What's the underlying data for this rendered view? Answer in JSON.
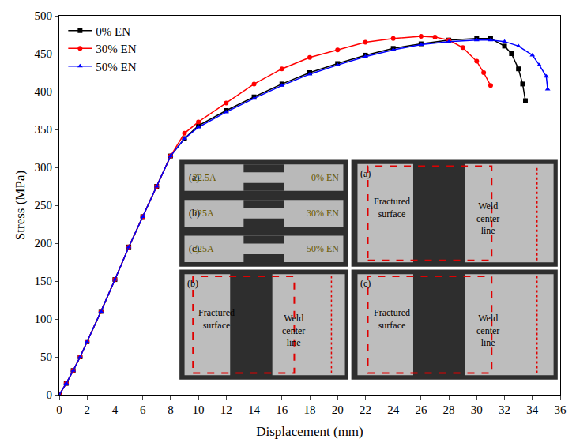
{
  "chart_data": {
    "type": "line",
    "x_label": "Displacement (mm)",
    "y_label": "Stress (MPa)",
    "xlim": [
      0,
      36
    ],
    "ylim": [
      0,
      500
    ],
    "xticks": [
      0,
      2,
      4,
      6,
      8,
      10,
      12,
      14,
      16,
      18,
      20,
      22,
      24,
      26,
      28,
      30,
      32,
      34,
      36
    ],
    "yticks": [
      0,
      50,
      100,
      150,
      200,
      250,
      300,
      350,
      400,
      450,
      500
    ],
    "grid": false,
    "legend": "upper left",
    "series": [
      {
        "name": "0% EN",
        "color": "#000000",
        "marker": "square",
        "line_style": "solid",
        "x": [
          0,
          0.5,
          1,
          1.5,
          2,
          3,
          4,
          5,
          6,
          7,
          8,
          9,
          10,
          12,
          14,
          16,
          18,
          20,
          22,
          24,
          26,
          28,
          30,
          31,
          32,
          32.5,
          33,
          33.3,
          33.5
        ],
        "values": [
          0,
          15,
          32,
          50,
          70,
          110,
          152,
          195,
          235,
          275,
          315,
          338,
          355,
          375,
          393,
          410,
          425,
          437,
          448,
          457,
          463,
          468,
          470,
          470,
          460,
          450,
          430,
          410,
          388
        ]
      },
      {
        "name": "30% EN",
        "color": "#ff0000",
        "marker": "circle",
        "line_style": "solid",
        "x": [
          0,
          0.5,
          1,
          1.5,
          2,
          3,
          4,
          5,
          6,
          7,
          8,
          9,
          10,
          12,
          14,
          16,
          18,
          20,
          22,
          24,
          26,
          27,
          28,
          29,
          30,
          30.5,
          31
        ],
        "values": [
          0,
          15,
          32,
          50,
          70,
          110,
          152,
          195,
          235,
          275,
          315,
          345,
          360,
          385,
          410,
          430,
          445,
          455,
          465,
          470,
          473,
          472,
          468,
          458,
          440,
          425,
          408
        ]
      },
      {
        "name": "50% EN",
        "color": "#0000ff",
        "marker": "triangle-up",
        "line_style": "solid",
        "x": [
          0,
          0.5,
          1,
          1.5,
          2,
          3,
          4,
          5,
          6,
          7,
          8,
          9,
          10,
          12,
          14,
          16,
          18,
          20,
          22,
          24,
          26,
          28,
          30,
          31,
          32,
          33,
          34,
          34.5,
          35,
          35.1
        ],
        "values": [
          0,
          15,
          32,
          50,
          70,
          110,
          152,
          195,
          235,
          275,
          315,
          338,
          353,
          373,
          391,
          408,
          423,
          435,
          446,
          455,
          462,
          466,
          468,
          468,
          466,
          460,
          448,
          435,
          420,
          403
        ]
      }
    ],
    "insets": {
      "overview": [
        {
          "label": "(a)",
          "current": "22.5A",
          "en": "0% EN"
        },
        {
          "label": "(b)",
          "current": "225A",
          "en": "30% EN"
        },
        {
          "label": "(c)",
          "current": "225A",
          "en": "50% EN"
        }
      ],
      "closeups": [
        {
          "label": "(a)",
          "fractured": "Fractured surface",
          "weld": "Weld center line"
        },
        {
          "label": "(b)",
          "fractured": "Fractured surface",
          "weld": "Weld center line"
        },
        {
          "label": "(c)",
          "fractured": "Fractured surface",
          "weld": "Weld center line"
        }
      ]
    }
  }
}
